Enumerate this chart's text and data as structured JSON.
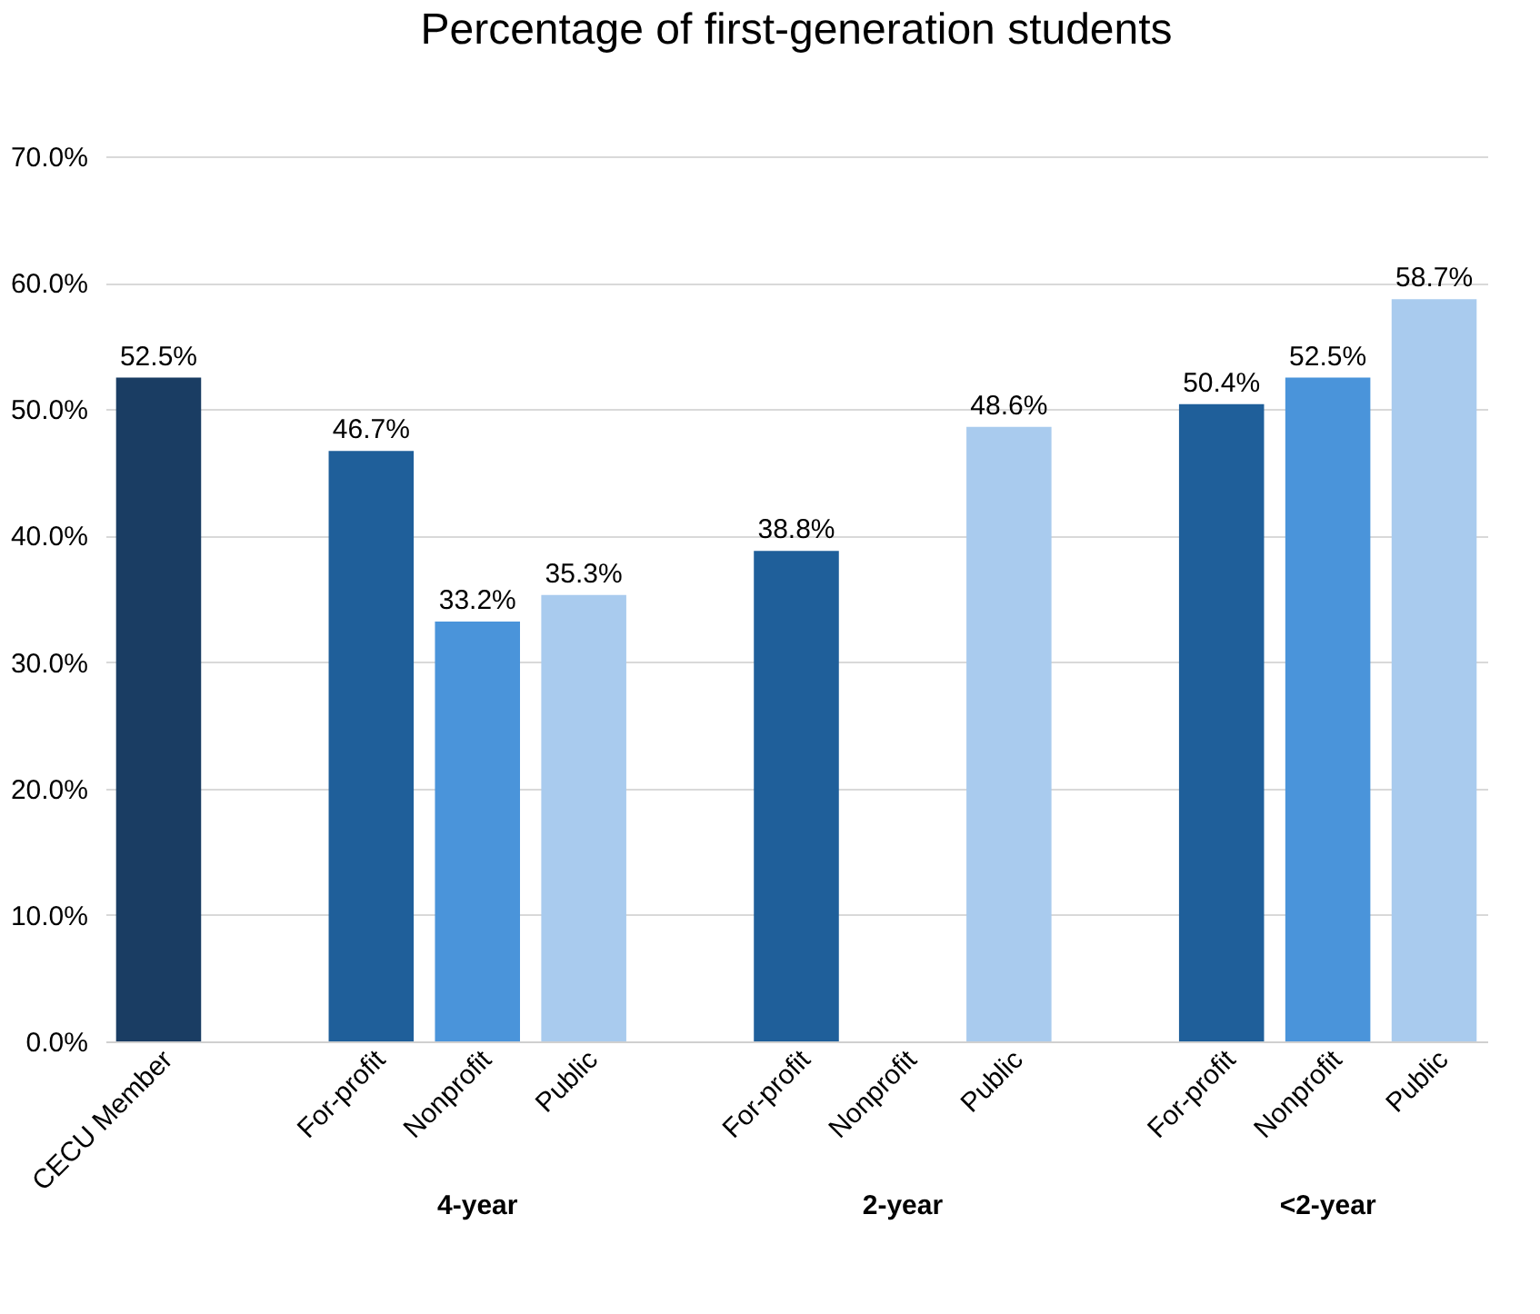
{
  "chart_data": {
    "type": "bar",
    "title": "Percentage of first-generation students",
    "categories": [
      "CECU Member",
      null,
      "For-profit",
      "Nonprofit",
      "Public",
      null,
      "For-profit",
      "Nonprofit",
      "Public",
      null,
      "For-profit",
      "Nonprofit",
      "Public"
    ],
    "values": [
      52.5,
      null,
      46.7,
      33.2,
      35.3,
      null,
      38.8,
      null,
      48.6,
      null,
      50.4,
      52.5,
      58.7
    ],
    "value_labels": [
      "52.5%",
      null,
      "46.7%",
      "33.2%",
      "35.3%",
      null,
      "38.8%",
      null,
      "48.6%",
      null,
      "50.4%",
      "52.5%",
      "58.7%"
    ],
    "colors": [
      "#1a3d63",
      null,
      "#1f5f9a",
      "#4a94da",
      "#a9cbee",
      null,
      "#1f5f9a",
      "#4a94da",
      "#a9cbee",
      null,
      "#1f5f9a",
      "#4a94da",
      "#a9cbee"
    ],
    "ylim": [
      0,
      70
    ],
    "yticks": [
      {
        "value": 0,
        "label": "0.0%"
      },
      {
        "value": 10,
        "label": "10.0%"
      },
      {
        "value": 20,
        "label": "20.0%"
      },
      {
        "value": 30,
        "label": "30.0%"
      },
      {
        "value": 40,
        "label": "40.0%"
      },
      {
        "value": 50,
        "label": "50.0%"
      },
      {
        "value": 60,
        "label": "60.0%"
      },
      {
        "value": 70,
        "label": "70.0%"
      }
    ],
    "grid": "y",
    "annotations": [
      "4-year",
      "2-year",
      "<2-year"
    ]
  }
}
